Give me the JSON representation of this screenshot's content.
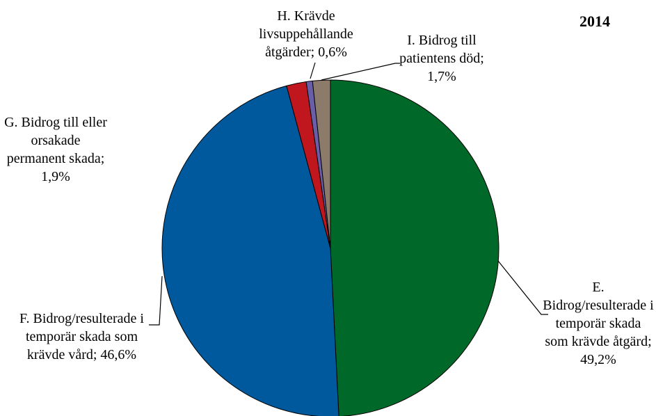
{
  "chart_data": {
    "type": "pie",
    "title": "2014",
    "categories": [
      "E. Bidrog/resulterade i temporär skada som krävde åtgärd;",
      "F. Bidrog/resulterade i temporär skada som krävde vård;",
      "G. Bidrog till eller orsakade permanent skada;",
      "H. Krävde livsuppehållande åtgärder;",
      "I. Bidrog till patientens död;"
    ],
    "values": [
      49.2,
      46.6,
      1.9,
      0.6,
      1.7
    ],
    "value_labels": [
      "49,2%",
      "46,6%",
      "1,9%",
      "0,6%",
      "1,7%"
    ],
    "colors": [
      "#006828",
      "#00599c",
      "#c0171f",
      "#6b5ea8",
      "#8c7b6b"
    ]
  }
}
